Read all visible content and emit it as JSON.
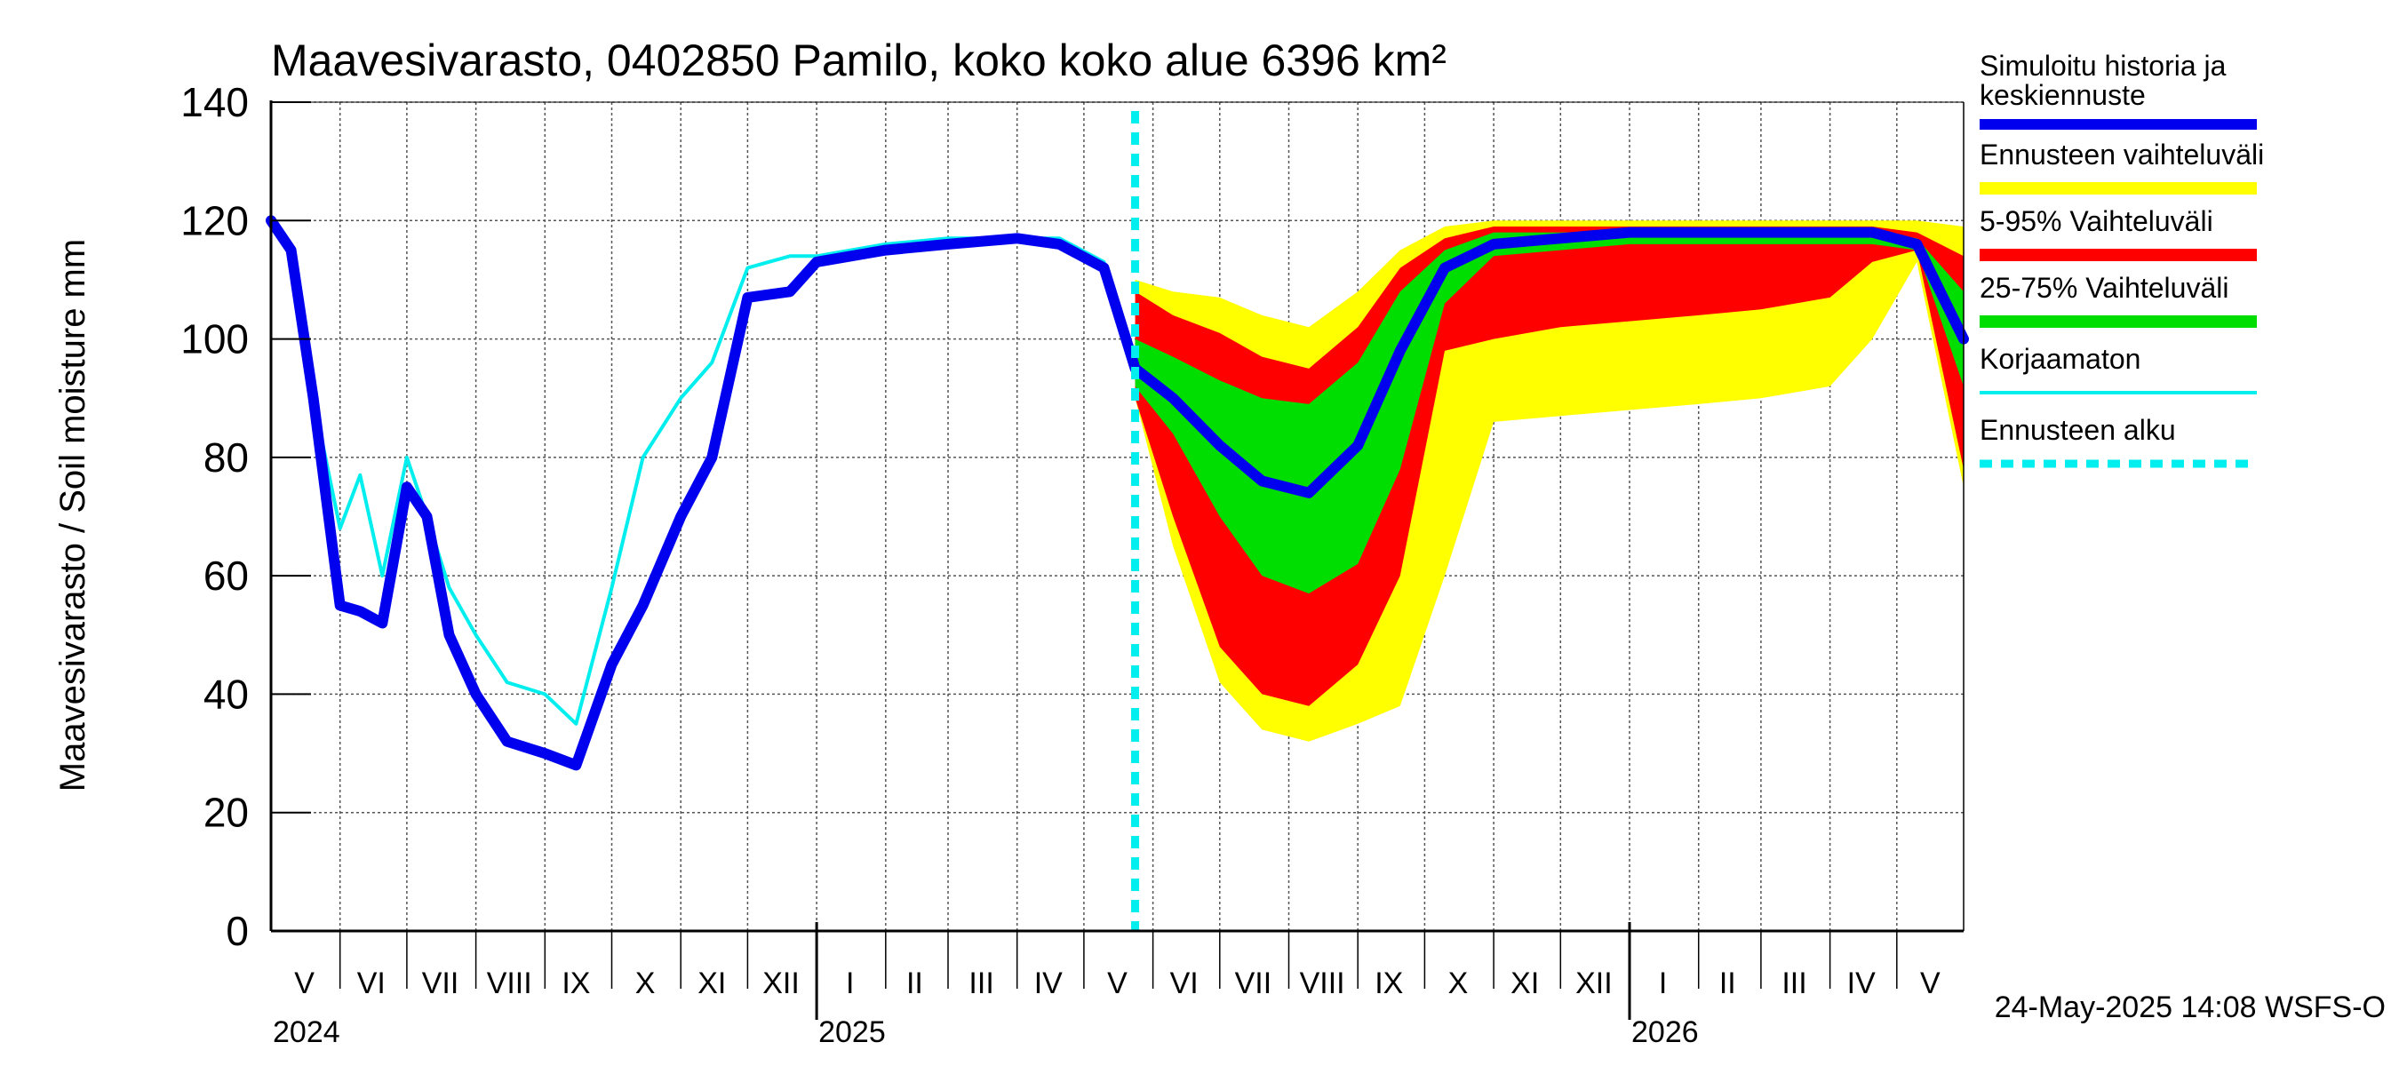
{
  "chart_data": {
    "type": "area",
    "title": "Maavesivarasto, 0402850 Pamilo, koko koko alue 6396 km²",
    "ylabel": "Maavesivarasto / Soil moisture   mm",
    "ylim": [
      0,
      140
    ],
    "yticks": [
      0,
      20,
      40,
      60,
      80,
      100,
      120,
      140
    ],
    "xlim": [
      "2024-05-01",
      "2026-05-31"
    ],
    "grid": true,
    "legend_position": "right",
    "month_labels": [
      {
        "label": "V",
        "date": "2024-05-16"
      },
      {
        "label": "VI",
        "date": "2024-06-15"
      },
      {
        "label": "VII",
        "date": "2024-07-16"
      },
      {
        "label": "VIII",
        "date": "2024-08-16"
      },
      {
        "label": "IX",
        "date": "2024-09-15"
      },
      {
        "label": "X",
        "date": "2024-10-16"
      },
      {
        "label": "XI",
        "date": "2024-11-15"
      },
      {
        "label": "XII",
        "date": "2024-12-16"
      },
      {
        "label": "I",
        "date": "2025-01-16"
      },
      {
        "label": "II",
        "date": "2025-02-14"
      },
      {
        "label": "III",
        "date": "2025-03-16"
      },
      {
        "label": "IV",
        "date": "2025-04-15"
      },
      {
        "label": "V",
        "date": "2025-05-16"
      },
      {
        "label": "VI",
        "date": "2025-06-15"
      },
      {
        "label": "VII",
        "date": "2025-07-16"
      },
      {
        "label": "VIII",
        "date": "2025-08-16"
      },
      {
        "label": "IX",
        "date": "2025-09-15"
      },
      {
        "label": "X",
        "date": "2025-10-16"
      },
      {
        "label": "XI",
        "date": "2025-11-15"
      },
      {
        "label": "XII",
        "date": "2025-12-16"
      },
      {
        "label": "I",
        "date": "2026-01-16"
      },
      {
        "label": "II",
        "date": "2026-02-14"
      },
      {
        "label": "III",
        "date": "2026-03-16"
      },
      {
        "label": "IV",
        "date": "2026-04-15"
      },
      {
        "label": "V",
        "date": "2026-05-16"
      }
    ],
    "month_boundaries": [
      "2024-06-01",
      "2024-07-01",
      "2024-08-01",
      "2024-09-01",
      "2024-10-01",
      "2024-11-01",
      "2024-12-01",
      "2025-01-01",
      "2025-02-01",
      "2025-03-01",
      "2025-04-01",
      "2025-05-01",
      "2025-06-01",
      "2025-07-01",
      "2025-08-01",
      "2025-09-01",
      "2025-10-01",
      "2025-11-01",
      "2025-12-01",
      "2026-01-01",
      "2026-02-01",
      "2026-03-01",
      "2026-04-01",
      "2026-05-01"
    ],
    "year_boundaries": [
      "2025-01-01",
      "2026-01-01"
    ],
    "year_labels": [
      {
        "label": "2024",
        "date": "2024-05-01"
      },
      {
        "label": "2025",
        "date": "2025-01-01"
      },
      {
        "label": "2026",
        "date": "2026-01-01"
      }
    ],
    "forecast_start": "2025-05-24",
    "x": [
      "2024-05-01",
      "2024-05-10",
      "2024-05-20",
      "2024-06-01",
      "2024-06-10",
      "2024-06-20",
      "2024-07-01",
      "2024-07-10",
      "2024-07-20",
      "2024-08-01",
      "2024-08-15",
      "2024-09-01",
      "2024-09-15",
      "2024-10-01",
      "2024-10-15",
      "2024-11-01",
      "2024-11-15",
      "2024-12-01",
      "2024-12-20",
      "2025-01-01",
      "2025-02-01",
      "2025-03-01",
      "2025-04-01",
      "2025-04-20",
      "2025-05-10",
      "2025-05-24",
      "2025-06-10",
      "2025-07-01",
      "2025-07-20",
      "2025-08-10",
      "2025-09-01",
      "2025-09-20",
      "2025-10-10",
      "2025-11-01",
      "2025-12-01",
      "2026-01-01",
      "2026-02-01",
      "2026-03-01",
      "2026-04-01",
      "2026-04-20",
      "2026-05-10",
      "2026-05-31"
    ],
    "series": [
      {
        "name": "Ennusteen vaihteluväli",
        "color": "#ffff00",
        "role": "band",
        "upper": [
          null,
          null,
          null,
          null,
          null,
          null,
          null,
          null,
          null,
          null,
          null,
          null,
          null,
          null,
          null,
          null,
          null,
          null,
          null,
          null,
          null,
          null,
          null,
          null,
          null,
          110,
          108,
          107,
          104,
          102,
          108,
          115,
          119,
          120,
          120,
          120,
          120,
          120,
          120,
          120,
          120,
          119
        ],
        "lower": [
          null,
          null,
          null,
          null,
          null,
          null,
          null,
          null,
          null,
          null,
          null,
          null,
          null,
          null,
          null,
          null,
          null,
          null,
          null,
          null,
          null,
          null,
          null,
          null,
          null,
          90,
          65,
          42,
          34,
          32,
          35,
          38,
          60,
          86,
          87,
          88,
          89,
          90,
          92,
          100,
          113,
          75
        ]
      },
      {
        "name": "5-95% Vaihteluväli",
        "color": "#ff0000",
        "role": "band",
        "upper": [
          null,
          null,
          null,
          null,
          null,
          null,
          null,
          null,
          null,
          null,
          null,
          null,
          null,
          null,
          null,
          null,
          null,
          null,
          null,
          null,
          null,
          null,
          null,
          null,
          null,
          108,
          104,
          101,
          97,
          95,
          102,
          112,
          117,
          119,
          119,
          119,
          119,
          119,
          119,
          119,
          118,
          114
        ],
        "lower": [
          null,
          null,
          null,
          null,
          null,
          null,
          null,
          null,
          null,
          null,
          null,
          null,
          null,
          null,
          null,
          null,
          null,
          null,
          null,
          null,
          null,
          null,
          null,
          null,
          null,
          90,
          70,
          48,
          40,
          38,
          45,
          60,
          98,
          100,
          102,
          103,
          104,
          105,
          107,
          113,
          115,
          78
        ]
      },
      {
        "name": "25-75% Vaihteluväli",
        "color": "#00dd00",
        "role": "band",
        "upper": [
          null,
          null,
          null,
          null,
          null,
          null,
          null,
          null,
          null,
          null,
          null,
          null,
          null,
          null,
          null,
          null,
          null,
          null,
          null,
          null,
          null,
          null,
          null,
          null,
          null,
          100,
          97,
          93,
          90,
          89,
          96,
          108,
          115,
          118,
          118,
          118,
          118,
          118,
          118,
          118,
          117,
          108
        ],
        "lower": [
          null,
          null,
          null,
          null,
          null,
          null,
          null,
          null,
          null,
          null,
          null,
          null,
          null,
          null,
          null,
          null,
          null,
          null,
          null,
          null,
          null,
          null,
          null,
          null,
          null,
          92,
          84,
          70,
          60,
          57,
          62,
          78,
          106,
          114,
          115,
          116,
          116,
          116,
          116,
          116,
          115,
          92
        ]
      },
      {
        "name": "Korjaamaton",
        "color": "#00eeee",
        "role": "line",
        "values": [
          120,
          115,
          90,
          68,
          77,
          60,
          80,
          70,
          58,
          50,
          42,
          40,
          35,
          58,
          80,
          90,
          96,
          112,
          114,
          114,
          116,
          117,
          117,
          117,
          113,
          95,
          null,
          null,
          null,
          null,
          null,
          null,
          null,
          null,
          null,
          null,
          null,
          null,
          null,
          null,
          null,
          null
        ]
      },
      {
        "name": "Simuloitu historia ja keskiennuste",
        "color": "#0000ee",
        "role": "line",
        "values": [
          120,
          115,
          90,
          55,
          54,
          52,
          75,
          70,
          50,
          40,
          32,
          30,
          28,
          45,
          55,
          70,
          80,
          107,
          108,
          113,
          115,
          116,
          117,
          116,
          112,
          95,
          90,
          82,
          76,
          74,
          82,
          98,
          112,
          116,
          117,
          118,
          118,
          118,
          118,
          118,
          116,
          100
        ]
      }
    ],
    "legend": [
      {
        "label": "Simuloitu historia ja keskiennuste",
        "color": "#0000ee",
        "style": "line"
      },
      {
        "label": "Ennusteen vaihteluväli",
        "color": "#ffff00",
        "style": "band"
      },
      {
        "label": "5-95% Vaihteluväli",
        "color": "#ff0000",
        "style": "band"
      },
      {
        "label": "25-75% Vaihteluväli",
        "color": "#00dd00",
        "style": "band"
      },
      {
        "label": "Korjaamaton",
        "color": "#00eeee",
        "style": "thin-line"
      },
      {
        "label": "Ennusteen alku",
        "color": "#00eeee",
        "style": "dashed"
      }
    ]
  },
  "footer": {
    "timestamp": "24-May-2025 14:08 WSFS-O"
  }
}
